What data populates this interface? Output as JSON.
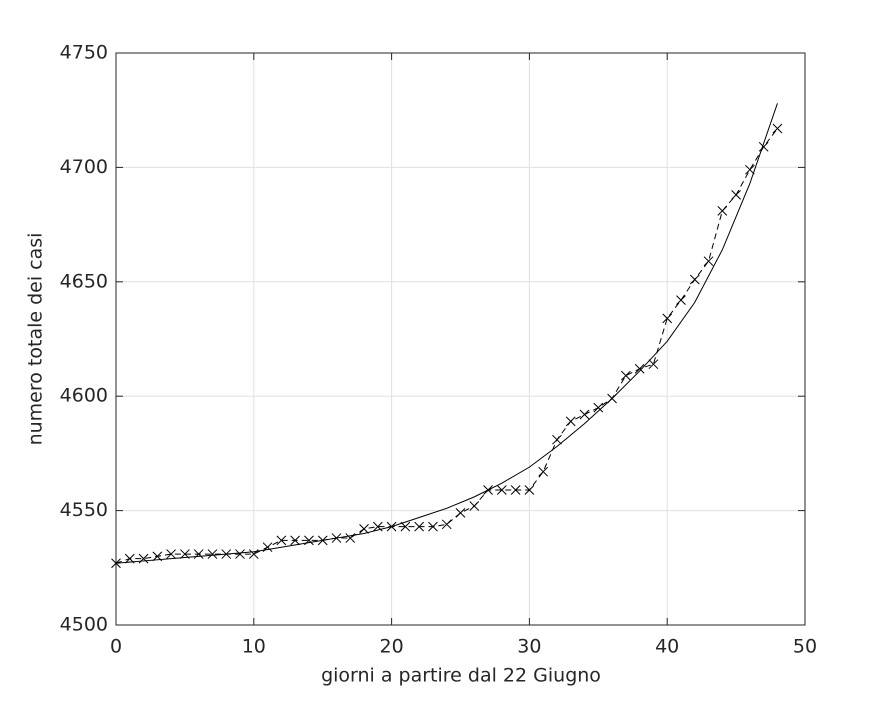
{
  "chart_data": {
    "type": "line",
    "xlabel": "giorni a partire dal 22 Giugno",
    "ylabel": "numero totale dei casi",
    "xlim": [
      0,
      50
    ],
    "xticks": [
      0,
      10,
      20,
      30,
      40,
      50
    ],
    "ylim": [
      4500,
      4750
    ],
    "yticks": [
      4500,
      4550,
      4600,
      4650,
      4700,
      4750
    ],
    "grid": true,
    "series": [
      {
        "color": "#000000",
        "linestyle": "dashed",
        "marker": "x",
        "x": [
          0,
          1,
          2,
          3,
          4,
          5,
          6,
          7,
          8,
          9,
          10,
          11,
          12,
          13,
          14,
          15,
          16,
          17,
          18,
          19,
          20,
          21,
          22,
          23,
          24,
          25,
          26,
          27,
          28,
          29,
          30,
          31,
          32,
          33,
          34,
          35,
          36,
          37,
          38,
          39,
          40,
          41,
          42,
          43,
          44,
          45,
          46,
          47,
          48
        ],
        "values": [
          4527,
          4529,
          4529,
          4530,
          4531,
          4531,
          4531,
          4531,
          4531,
          4531,
          4531,
          4534,
          4537,
          4537,
          4537,
          4537,
          4538,
          4538,
          4542,
          4543,
          4543,
          4543,
          4543,
          4543,
          4544,
          4549,
          4552,
          4559,
          4559,
          4559,
          4559,
          4567,
          4581,
          4589,
          4592,
          4595,
          4599,
          4609,
          4612,
          4614,
          4634,
          4642,
          4651,
          4659,
          4681,
          4688,
          4699,
          4709,
          4717
        ]
      },
      {
        "color": "#000000",
        "linestyle": "solid",
        "x": [
          0,
          2,
          4,
          6,
          8,
          10,
          12,
          14,
          16,
          18,
          20,
          22,
          24,
          26,
          28,
          30,
          32,
          34,
          36,
          38,
          40,
          42,
          44,
          46,
          48
        ],
        "values": [
          4527,
          4528,
          4529,
          4530,
          4531,
          4532,
          4534,
          4536,
          4538,
          4540,
          4543,
          4547,
          4551,
          4556,
          4562,
          4569,
          4578,
          4588,
          4599,
          4611,
          4624,
          4641,
          4664,
          4693,
          4728
        ]
      }
    ]
  }
}
